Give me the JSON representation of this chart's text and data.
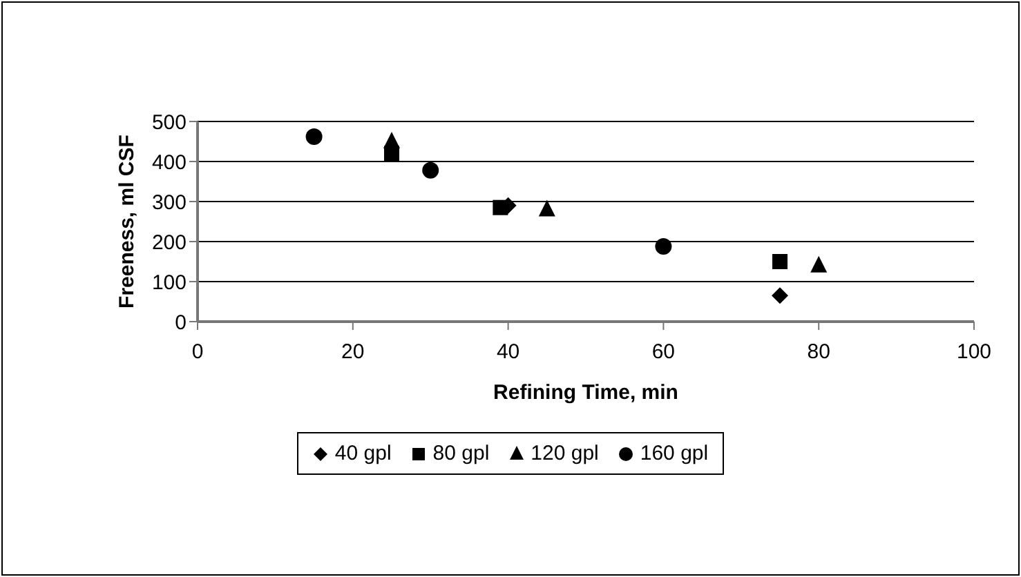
{
  "chart_data": {
    "type": "scatter",
    "xlabel": "Refining Time, min",
    "ylabel": "Freeness, ml CSF",
    "xlim": [
      0,
      100
    ],
    "xticks": [
      0,
      20,
      40,
      60,
      80,
      100
    ],
    "ylim": [
      0,
      500
    ],
    "yticks": [
      0,
      100,
      200,
      300,
      400,
      500
    ],
    "grid": "y",
    "legend": "bottom",
    "series": [
      {
        "name": "40 gpl",
        "color": "#000000",
        "marker": "diamond",
        "x": [
          40,
          75
        ],
        "values": [
          290,
          65
        ]
      },
      {
        "name": "80 gpl",
        "color": "#000000",
        "marker": "square",
        "x": [
          25,
          39,
          75
        ],
        "values": [
          420,
          285,
          150
        ]
      },
      {
        "name": "120 gpl",
        "color": "#000000",
        "marker": "triangle",
        "x": [
          25,
          45,
          80
        ],
        "values": [
          450,
          280,
          140
        ]
      },
      {
        "name": "160 gpl",
        "color": "#000000",
        "marker": "circle",
        "x": [
          15,
          30,
          60
        ],
        "values": [
          462,
          378,
          188
        ]
      }
    ]
  }
}
